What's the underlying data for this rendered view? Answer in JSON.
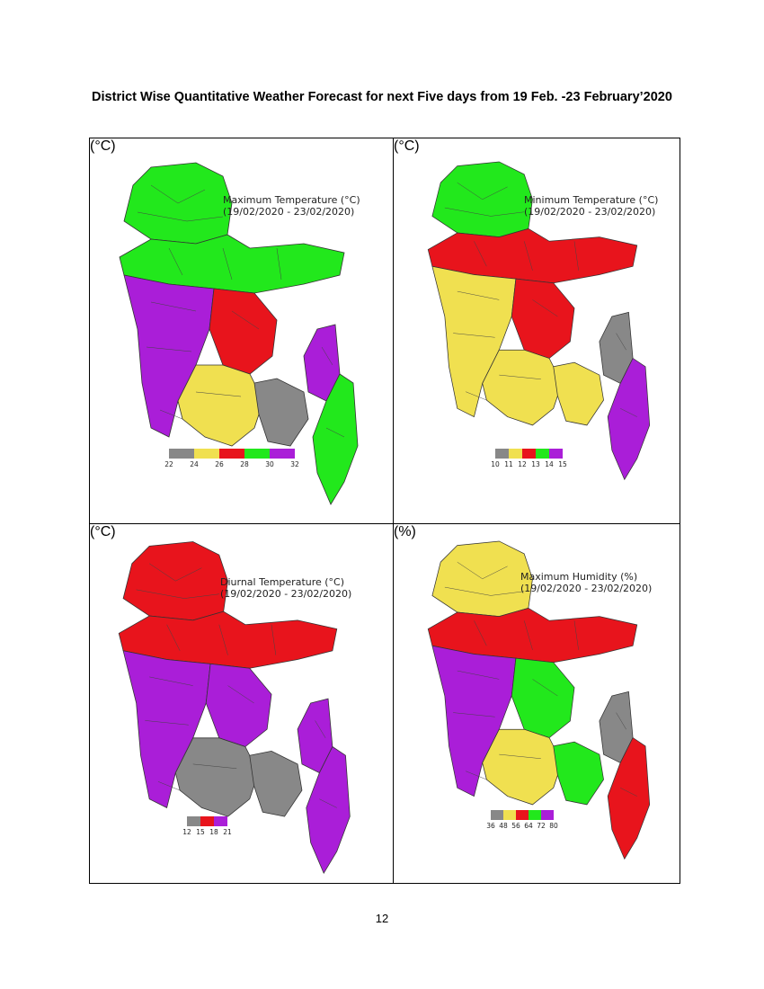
{
  "page": {
    "title": "District Wise Quantitative Weather Forecast for next Five days from 19 Feb. -23 February’2020",
    "page_number": "12"
  },
  "maps": [
    {
      "title": "Maximum Temperature (°C)",
      "period": "(19/02/2020 - 23/02/2020)",
      "unit": "(°C)",
      "legend_colors": [
        "#888888",
        "#f0e050",
        "#e8141c",
        "#22e81c",
        "#aa1ed8"
      ],
      "legend_ticks": [
        "22",
        "24",
        "26",
        "28",
        "30",
        "32"
      ],
      "region_colors": [
        "#22e81c",
        "#22e81c",
        "#aa1ed8",
        "#e8141c",
        "#f0e050",
        "#aa1ed8",
        "#888888",
        "#22e81c"
      ]
    },
    {
      "title": "Minimum Temperature (°C)",
      "period": "(19/02/2020 - 23/02/2020)",
      "unit": "(°C)",
      "legend_colors": [
        "#888888",
        "#f0e050",
        "#e8141c",
        "#22e81c",
        "#aa1ed8"
      ],
      "legend_ticks": [
        "10",
        "11",
        "12",
        "13",
        "14",
        "15"
      ],
      "region_colors": [
        "#22e81c",
        "#e8141c",
        "#f0e050",
        "#e8141c",
        "#f0e050",
        "#888888",
        "#f0e050",
        "#aa1ed8"
      ]
    },
    {
      "title": "Diurnal Temperature (°C)",
      "period": "(19/02/2020 - 23/02/2020)",
      "unit": "(°C)",
      "legend_colors": [
        "#888888",
        "#e8141c",
        "#aa1ed8"
      ],
      "legend_ticks": [
        "12",
        "15",
        "18",
        "21"
      ],
      "region_colors": [
        "#e8141c",
        "#e8141c",
        "#aa1ed8",
        "#aa1ed8",
        "#888888",
        "#aa1ed8",
        "#888888",
        "#aa1ed8"
      ]
    },
    {
      "title": "Maximum Humidity (%)",
      "period": "(19/02/2020 - 23/02/2020)",
      "unit": "(%)",
      "legend_colors": [
        "#888888",
        "#f0e050",
        "#e8141c",
        "#22e81c",
        "#aa1ed8"
      ],
      "legend_ticks": [
        "36",
        "48",
        "56",
        "64",
        "72",
        "80"
      ],
      "region_colors": [
        "#f0e050",
        "#e8141c",
        "#aa1ed8",
        "#22e81c",
        "#f0e050",
        "#888888",
        "#22e81c",
        "#e8141c"
      ]
    }
  ]
}
